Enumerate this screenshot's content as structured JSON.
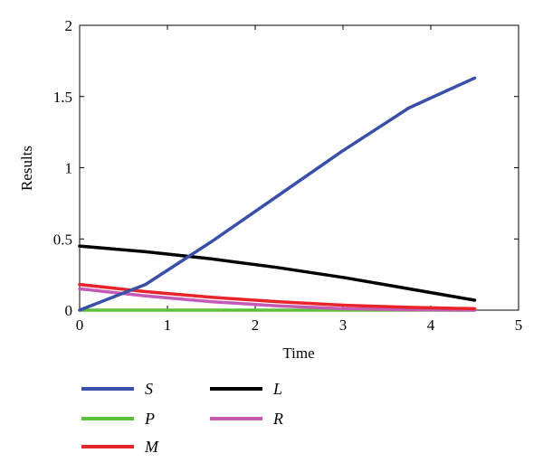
{
  "chart_data": {
    "type": "line",
    "xlabel": "Time",
    "ylabel": "Results",
    "xlim": [
      0,
      5
    ],
    "ylim": [
      0,
      2
    ],
    "xticks": [
      0,
      1,
      2,
      3,
      4,
      5
    ],
    "yticks": [
      0,
      0.5,
      1,
      1.5,
      2
    ],
    "ytick_labels": [
      "0",
      "0.5",
      "1",
      "1.5",
      "2"
    ],
    "grid": false,
    "legend_position": "below",
    "series": [
      {
        "name": "S",
        "color": "#3a4fa8",
        "x": [
          0,
          0.75,
          1.5,
          2.25,
          3,
          3.75,
          4.5
        ],
        "y": [
          0.0,
          0.18,
          0.48,
          0.8,
          1.12,
          1.42,
          1.63
        ]
      },
      {
        "name": "P",
        "color": "#5cbf3a",
        "x": [
          0,
          4.5
        ],
        "y": [
          0.0,
          0.0
        ]
      },
      {
        "name": "M",
        "color": "#e8242a",
        "x": [
          0,
          0.75,
          1.5,
          2.25,
          3,
          3.75,
          4.5
        ],
        "y": [
          0.18,
          0.13,
          0.09,
          0.06,
          0.035,
          0.02,
          0.01
        ]
      },
      {
        "name": "L",
        "color": "#000000",
        "x": [
          0,
          0.75,
          1.5,
          2.25,
          3,
          3.75,
          4.5
        ],
        "y": [
          0.45,
          0.41,
          0.36,
          0.3,
          0.23,
          0.15,
          0.07
        ]
      },
      {
        "name": "R",
        "color": "#c45ab4",
        "x": [
          0,
          0.75,
          1.5,
          2.25,
          3,
          3.75,
          4.5
        ],
        "y": [
          0.15,
          0.1,
          0.06,
          0.03,
          0.01,
          0.003,
          0.0
        ]
      }
    ],
    "legend_order": [
      "S",
      "P",
      "M",
      "L",
      "R"
    ]
  }
}
